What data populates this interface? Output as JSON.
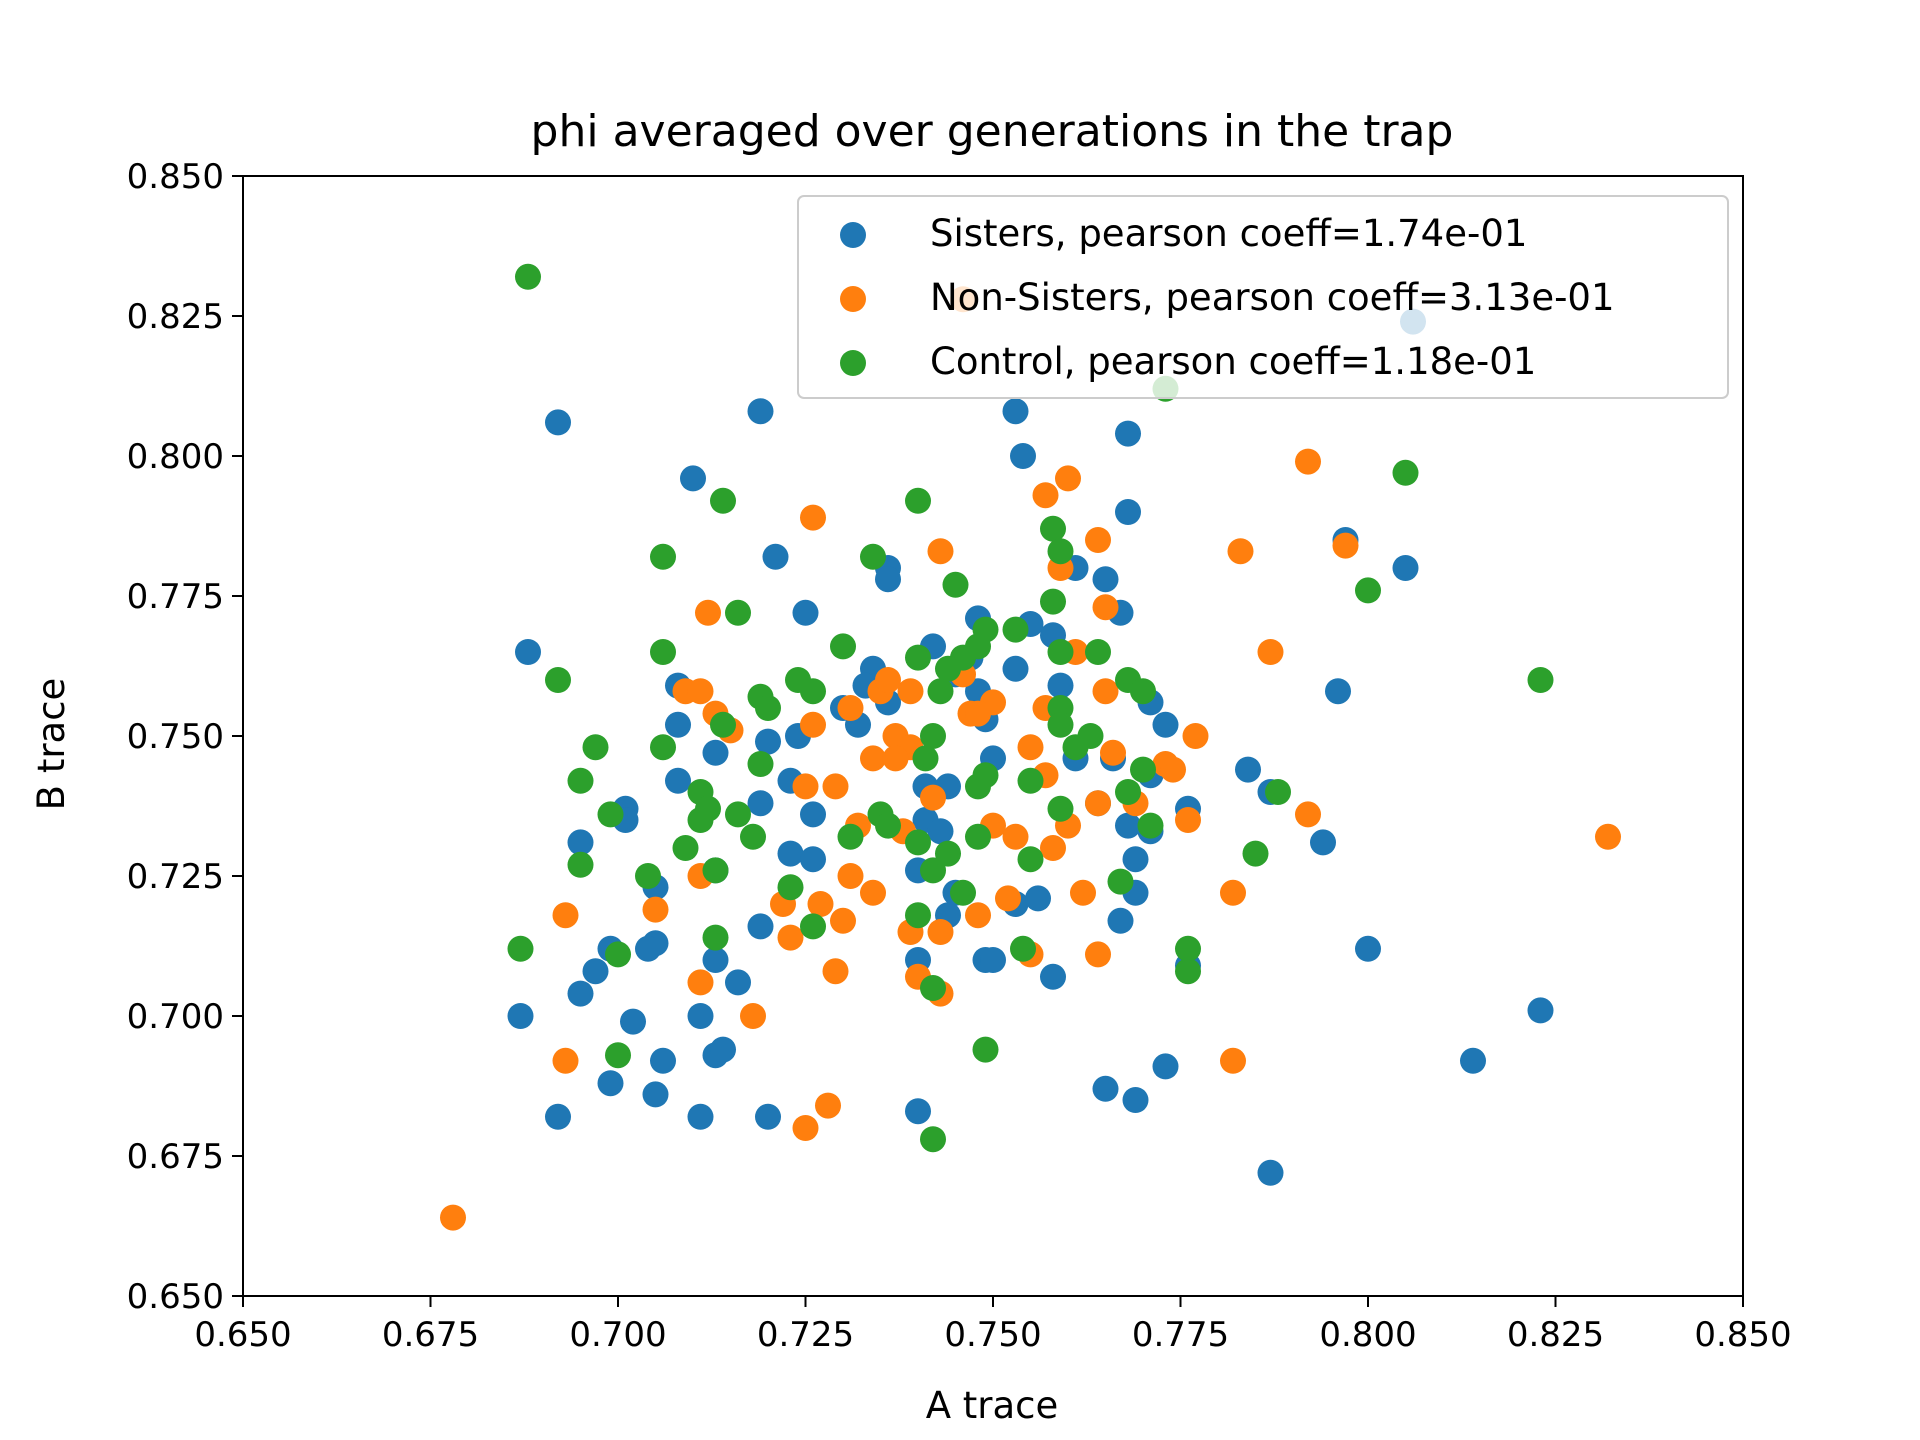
{
  "chart_data": {
    "type": "scatter",
    "title": "phi averaged over generations in the trap",
    "xlabel": "A trace",
    "ylabel": "B trace",
    "xlim": [
      0.65,
      0.85
    ],
    "ylim": [
      0.65,
      0.85
    ],
    "xticks": [
      "0.650",
      "0.675",
      "0.700",
      "0.725",
      "0.750",
      "0.775",
      "0.800",
      "0.825",
      "0.850"
    ],
    "yticks": [
      "0.650",
      "0.675",
      "0.700",
      "0.725",
      "0.750",
      "0.775",
      "0.800",
      "0.825",
      "0.850"
    ],
    "grid": false,
    "legend_position": "top-right",
    "series": [
      {
        "name": "Sisters, pearson coeff=1.74e-01",
        "color": "#1f77b4",
        "points": [
          [
            0.806,
            0.824
          ],
          [
            0.692,
            0.806
          ],
          [
            0.719,
            0.808
          ],
          [
            0.753,
            0.808
          ],
          [
            0.754,
            0.8
          ],
          [
            0.768,
            0.804
          ],
          [
            0.71,
            0.796
          ],
          [
            0.768,
            0.79
          ],
          [
            0.797,
            0.785
          ],
          [
            0.805,
            0.78
          ],
          [
            0.721,
            0.782
          ],
          [
            0.736,
            0.78
          ],
          [
            0.736,
            0.778
          ],
          [
            0.761,
            0.78
          ],
          [
            0.765,
            0.778
          ],
          [
            0.767,
            0.772
          ],
          [
            0.725,
            0.772
          ],
          [
            0.688,
            0.765
          ],
          [
            0.748,
            0.771
          ],
          [
            0.755,
            0.77
          ],
          [
            0.758,
            0.768
          ],
          [
            0.742,
            0.766
          ],
          [
            0.747,
            0.764
          ],
          [
            0.734,
            0.762
          ],
          [
            0.753,
            0.762
          ],
          [
            0.745,
            0.761
          ],
          [
            0.708,
            0.759
          ],
          [
            0.733,
            0.759
          ],
          [
            0.748,
            0.758
          ],
          [
            0.759,
            0.759
          ],
          [
            0.796,
            0.758
          ],
          [
            0.73,
            0.755
          ],
          [
            0.736,
            0.756
          ],
          [
            0.771,
            0.756
          ],
          [
            0.732,
            0.752
          ],
          [
            0.749,
            0.753
          ],
          [
            0.773,
            0.752
          ],
          [
            0.708,
            0.752
          ],
          [
            0.724,
            0.75
          ],
          [
            0.72,
            0.749
          ],
          [
            0.713,
            0.747
          ],
          [
            0.75,
            0.746
          ],
          [
            0.761,
            0.746
          ],
          [
            0.766,
            0.746
          ],
          [
            0.784,
            0.744
          ],
          [
            0.708,
            0.742
          ],
          [
            0.723,
            0.742
          ],
          [
            0.741,
            0.741
          ],
          [
            0.771,
            0.743
          ],
          [
            0.787,
            0.74
          ],
          [
            0.719,
            0.738
          ],
          [
            0.701,
            0.737
          ],
          [
            0.744,
            0.741
          ],
          [
            0.764,
            0.738
          ],
          [
            0.776,
            0.737
          ],
          [
            0.701,
            0.735
          ],
          [
            0.726,
            0.736
          ],
          [
            0.741,
            0.735
          ],
          [
            0.743,
            0.733
          ],
          [
            0.768,
            0.734
          ],
          [
            0.771,
            0.733
          ],
          [
            0.695,
            0.731
          ],
          [
            0.794,
            0.731
          ],
          [
            0.723,
            0.729
          ],
          [
            0.726,
            0.728
          ],
          [
            0.769,
            0.728
          ],
          [
            0.74,
            0.726
          ],
          [
            0.713,
            0.726
          ],
          [
            0.705,
            0.723
          ],
          [
            0.745,
            0.722
          ],
          [
            0.753,
            0.72
          ],
          [
            0.756,
            0.721
          ],
          [
            0.769,
            0.722
          ],
          [
            0.744,
            0.718
          ],
          [
            0.767,
            0.717
          ],
          [
            0.719,
            0.716
          ],
          [
            0.699,
            0.712
          ],
          [
            0.705,
            0.713
          ],
          [
            0.704,
            0.712
          ],
          [
            0.8,
            0.712
          ],
          [
            0.697,
            0.708
          ],
          [
            0.713,
            0.71
          ],
          [
            0.74,
            0.71
          ],
          [
            0.749,
            0.71
          ],
          [
            0.75,
            0.71
          ],
          [
            0.758,
            0.707
          ],
          [
            0.776,
            0.709
          ],
          [
            0.695,
            0.704
          ],
          [
            0.716,
            0.706
          ],
          [
            0.687,
            0.7
          ],
          [
            0.711,
            0.7
          ],
          [
            0.702,
            0.699
          ],
          [
            0.823,
            0.701
          ],
          [
            0.713,
            0.693
          ],
          [
            0.714,
            0.694
          ],
          [
            0.706,
            0.692
          ],
          [
            0.773,
            0.691
          ],
          [
            0.814,
            0.692
          ],
          [
            0.699,
            0.688
          ],
          [
            0.765,
            0.687
          ],
          [
            0.705,
            0.686
          ],
          [
            0.769,
            0.685
          ],
          [
            0.692,
            0.682
          ],
          [
            0.711,
            0.682
          ],
          [
            0.72,
            0.682
          ],
          [
            0.74,
            0.683
          ],
          [
            0.787,
            0.672
          ]
        ]
      },
      {
        "name": "Non-Sisters, pearson coeff=3.13e-01",
        "color": "#ff7f0e",
        "points": [
          [
            0.746,
            0.828
          ],
          [
            0.792,
            0.799
          ],
          [
            0.76,
            0.796
          ],
          [
            0.757,
            0.793
          ],
          [
            0.726,
            0.789
          ],
          [
            0.797,
            0.784
          ],
          [
            0.783,
            0.783
          ],
          [
            0.764,
            0.785
          ],
          [
            0.743,
            0.783
          ],
          [
            0.759,
            0.78
          ],
          [
            0.765,
            0.773
          ],
          [
            0.712,
            0.772
          ],
          [
            0.787,
            0.765
          ],
          [
            0.761,
            0.765
          ],
          [
            0.709,
            0.758
          ],
          [
            0.711,
            0.758
          ],
          [
            0.735,
            0.758
          ],
          [
            0.739,
            0.758
          ],
          [
            0.736,
            0.76
          ],
          [
            0.746,
            0.761
          ],
          [
            0.765,
            0.758
          ],
          [
            0.731,
            0.755
          ],
          [
            0.75,
            0.756
          ],
          [
            0.757,
            0.755
          ],
          [
            0.713,
            0.754
          ],
          [
            0.747,
            0.754
          ],
          [
            0.748,
            0.754
          ],
          [
            0.715,
            0.751
          ],
          [
            0.726,
            0.752
          ],
          [
            0.737,
            0.75
          ],
          [
            0.777,
            0.75
          ],
          [
            0.739,
            0.748
          ],
          [
            0.755,
            0.748
          ],
          [
            0.734,
            0.746
          ],
          [
            0.737,
            0.746
          ],
          [
            0.766,
            0.747
          ],
          [
            0.773,
            0.745
          ],
          [
            0.774,
            0.744
          ],
          [
            0.757,
            0.743
          ],
          [
            0.725,
            0.741
          ],
          [
            0.729,
            0.741
          ],
          [
            0.742,
            0.739
          ],
          [
            0.764,
            0.738
          ],
          [
            0.769,
            0.738
          ],
          [
            0.792,
            0.736
          ],
          [
            0.776,
            0.735
          ],
          [
            0.732,
            0.734
          ],
          [
            0.738,
            0.733
          ],
          [
            0.75,
            0.734
          ],
          [
            0.76,
            0.734
          ],
          [
            0.753,
            0.732
          ],
          [
            0.832,
            0.732
          ],
          [
            0.758,
            0.73
          ],
          [
            0.731,
            0.725
          ],
          [
            0.711,
            0.725
          ],
          [
            0.734,
            0.722
          ],
          [
            0.752,
            0.721
          ],
          [
            0.762,
            0.722
          ],
          [
            0.782,
            0.722
          ],
          [
            0.722,
            0.72
          ],
          [
            0.727,
            0.72
          ],
          [
            0.705,
            0.719
          ],
          [
            0.693,
            0.718
          ],
          [
            0.73,
            0.717
          ],
          [
            0.748,
            0.718
          ],
          [
            0.739,
            0.715
          ],
          [
            0.743,
            0.715
          ],
          [
            0.723,
            0.714
          ],
          [
            0.755,
            0.711
          ],
          [
            0.764,
            0.711
          ],
          [
            0.729,
            0.708
          ],
          [
            0.74,
            0.707
          ],
          [
            0.711,
            0.706
          ],
          [
            0.743,
            0.704
          ],
          [
            0.718,
            0.7
          ],
          [
            0.693,
            0.692
          ],
          [
            0.782,
            0.692
          ],
          [
            0.728,
            0.684
          ],
          [
            0.725,
            0.68
          ],
          [
            0.678,
            0.664
          ]
        ]
      },
      {
        "name": "Control, pearson coeff=1.18e-01",
        "color": "#2ca02c",
        "points": [
          [
            0.688,
            0.832
          ],
          [
            0.773,
            0.812
          ],
          [
            0.805,
            0.797
          ],
          [
            0.74,
            0.792
          ],
          [
            0.714,
            0.792
          ],
          [
            0.758,
            0.787
          ],
          [
            0.759,
            0.783
          ],
          [
            0.734,
            0.782
          ],
          [
            0.706,
            0.782
          ],
          [
            0.8,
            0.776
          ],
          [
            0.745,
            0.777
          ],
          [
            0.758,
            0.774
          ],
          [
            0.716,
            0.772
          ],
          [
            0.749,
            0.769
          ],
          [
            0.753,
            0.769
          ],
          [
            0.73,
            0.766
          ],
          [
            0.748,
            0.766
          ],
          [
            0.706,
            0.765
          ],
          [
            0.746,
            0.764
          ],
          [
            0.74,
            0.764
          ],
          [
            0.759,
            0.765
          ],
          [
            0.764,
            0.765
          ],
          [
            0.744,
            0.762
          ],
          [
            0.692,
            0.76
          ],
          [
            0.724,
            0.76
          ],
          [
            0.768,
            0.76
          ],
          [
            0.823,
            0.76
          ],
          [
            0.726,
            0.758
          ],
          [
            0.743,
            0.758
          ],
          [
            0.77,
            0.758
          ],
          [
            0.719,
            0.757
          ],
          [
            0.72,
            0.755
          ],
          [
            0.759,
            0.755
          ],
          [
            0.759,
            0.752
          ],
          [
            0.714,
            0.752
          ],
          [
            0.706,
            0.748
          ],
          [
            0.697,
            0.748
          ],
          [
            0.742,
            0.75
          ],
          [
            0.761,
            0.748
          ],
          [
            0.763,
            0.75
          ],
          [
            0.741,
            0.746
          ],
          [
            0.719,
            0.745
          ],
          [
            0.695,
            0.742
          ],
          [
            0.749,
            0.743
          ],
          [
            0.755,
            0.742
          ],
          [
            0.77,
            0.744
          ],
          [
            0.711,
            0.74
          ],
          [
            0.712,
            0.737
          ],
          [
            0.748,
            0.741
          ],
          [
            0.768,
            0.74
          ],
          [
            0.788,
            0.74
          ],
          [
            0.699,
            0.736
          ],
          [
            0.716,
            0.736
          ],
          [
            0.735,
            0.736
          ],
          [
            0.759,
            0.737
          ],
          [
            0.711,
            0.735
          ],
          [
            0.736,
            0.734
          ],
          [
            0.771,
            0.734
          ],
          [
            0.718,
            0.732
          ],
          [
            0.731,
            0.732
          ],
          [
            0.748,
            0.732
          ],
          [
            0.74,
            0.731
          ],
          [
            0.709,
            0.73
          ],
          [
            0.744,
            0.729
          ],
          [
            0.785,
            0.729
          ],
          [
            0.755,
            0.728
          ],
          [
            0.695,
            0.727
          ],
          [
            0.713,
            0.726
          ],
          [
            0.742,
            0.726
          ],
          [
            0.704,
            0.725
          ],
          [
            0.767,
            0.724
          ],
          [
            0.723,
            0.723
          ],
          [
            0.746,
            0.722
          ],
          [
            0.726,
            0.716
          ],
          [
            0.74,
            0.718
          ],
          [
            0.776,
            0.712
          ],
          [
            0.687,
            0.712
          ],
          [
            0.713,
            0.714
          ],
          [
            0.754,
            0.712
          ],
          [
            0.7,
            0.711
          ],
          [
            0.776,
            0.708
          ],
          [
            0.742,
            0.705
          ],
          [
            0.7,
            0.693
          ],
          [
            0.749,
            0.694
          ],
          [
            0.742,
            0.678
          ]
        ]
      }
    ]
  }
}
